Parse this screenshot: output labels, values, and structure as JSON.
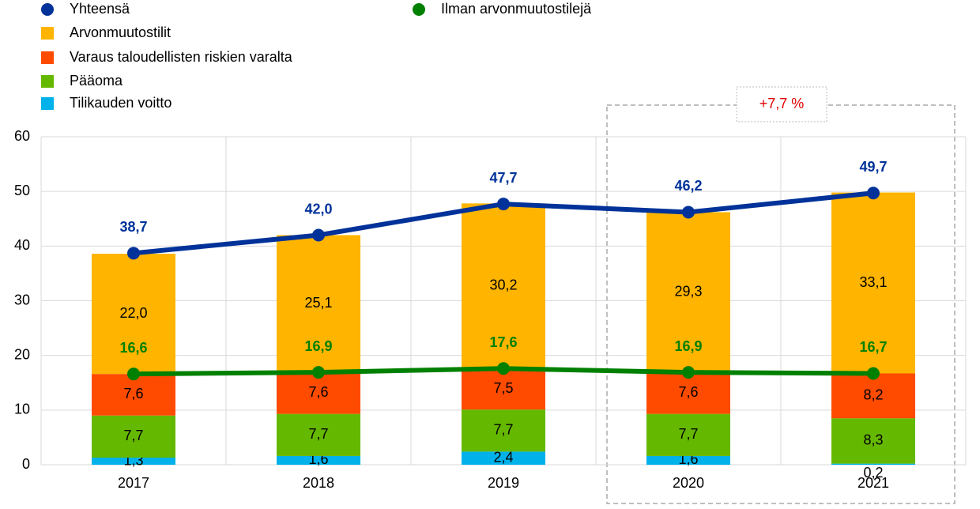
{
  "chart_data": {
    "type": "bar",
    "categories": [
      "2017",
      "2018",
      "2019",
      "2020",
      "2021"
    ],
    "series": [
      {
        "name": "Yhteensä",
        "type": "line",
        "color": "#003299",
        "values": [
          38.7,
          42.0,
          47.7,
          46.2,
          49.7
        ],
        "value_labels": [
          "38,7",
          "42,0",
          "47,7",
          "46,2",
          "49,7"
        ]
      },
      {
        "name": "Arvonmuutostilit",
        "type": "bar",
        "color": "#ffb400",
        "values": [
          22.0,
          25.1,
          30.2,
          29.3,
          33.1
        ],
        "value_labels": [
          "22,0",
          "25,1",
          "30,2",
          "29,3",
          "33,1"
        ]
      },
      {
        "name": "Varaus taloudellisten riskien varalta",
        "type": "bar",
        "color": "#ff4b00",
        "values": [
          7.6,
          7.6,
          7.5,
          7.6,
          8.2
        ],
        "value_labels": [
          "7,6",
          "7,6",
          "7,5",
          "7,6",
          "8,2"
        ]
      },
      {
        "name": "Pääoma",
        "type": "bar",
        "color": "#65b800",
        "values": [
          7.7,
          7.7,
          7.7,
          7.7,
          8.3
        ],
        "value_labels": [
          "7,7",
          "7,7",
          "7,7",
          "7,7",
          "8,3"
        ]
      },
      {
        "name": "Tilikauden voitto",
        "type": "bar",
        "color": "#00b1ea",
        "values": [
          1.3,
          1.6,
          2.4,
          1.6,
          0.2
        ],
        "value_labels": [
          "1,3",
          "1,6",
          "2,4",
          "1,6",
          "0,2"
        ]
      },
      {
        "name": "Ilman arvonmuutostilejä",
        "type": "line",
        "color": "#008000",
        "values": [
          16.6,
          16.9,
          17.6,
          16.9,
          16.7
        ],
        "value_labels": [
          "16,6",
          "16,9",
          "17,6",
          "16,9",
          "16,7"
        ]
      }
    ],
    "ylim": [
      0,
      60
    ],
    "yticks": [
      0,
      10,
      20,
      30,
      40,
      50,
      60
    ],
    "grid": true,
    "annotation": "+7,7 %"
  }
}
